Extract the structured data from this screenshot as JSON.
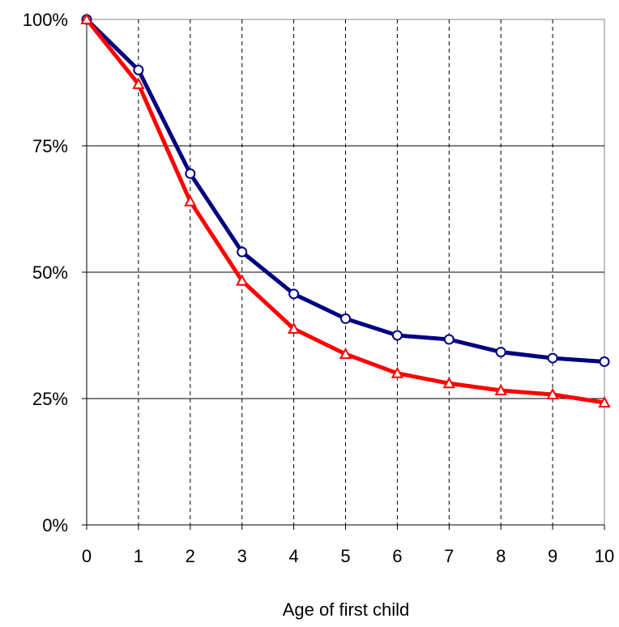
{
  "chart_data": {
    "type": "line",
    "title": "",
    "xlabel": "Age of first child",
    "ylabel": "",
    "x": [
      0,
      1,
      2,
      3,
      4,
      5,
      6,
      7,
      8,
      9,
      10
    ],
    "xlim": [
      0,
      10
    ],
    "ylim": [
      0,
      100
    ],
    "y_tick_labels": [
      "0%",
      "25%",
      "50%",
      "75%",
      "100%"
    ],
    "y_tick_values": [
      0,
      25,
      50,
      75,
      100
    ],
    "x_tick_labels": [
      "0",
      "1",
      "2",
      "3",
      "4",
      "5",
      "6",
      "7",
      "8",
      "9",
      "10"
    ],
    "grid": {
      "horizontal": "solid",
      "vertical": "dashed"
    },
    "legend": "none",
    "series": [
      {
        "values": [
          100,
          90,
          69.5,
          54,
          45.7,
          40.8,
          37.5,
          36.7,
          34.2,
          33,
          32.3
        ],
        "color": "#00007f",
        "marker": "circle"
      },
      {
        "values": [
          100,
          87.2,
          64,
          48.3,
          38.8,
          33.8,
          30,
          28,
          26.6,
          25.8,
          24.2
        ],
        "color": "#ff0000",
        "marker": "triangle"
      }
    ]
  }
}
